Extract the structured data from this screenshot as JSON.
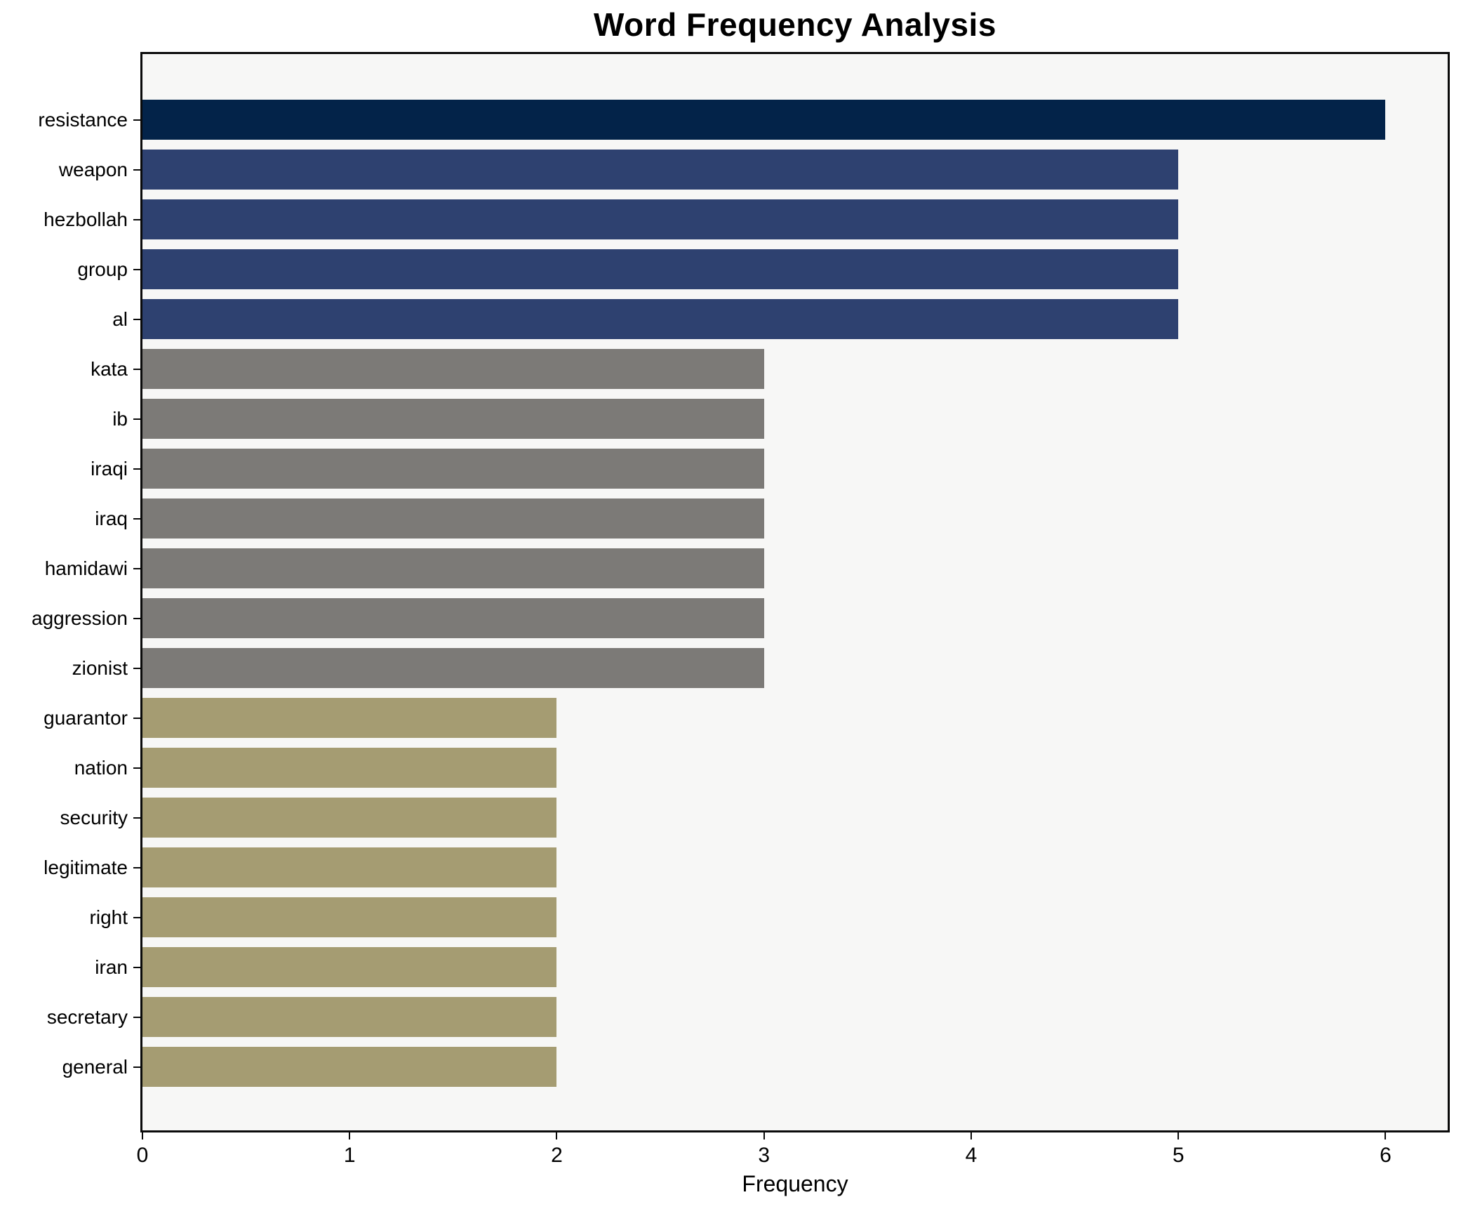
{
  "title": "Word Frequency Analysis",
  "axes": {
    "xlabel": "Frequency",
    "ylabel": ""
  },
  "colors": {
    "figure_bg": "#ffffff",
    "plot_bg": "#f7f7f6",
    "spine": "#0a0a0a",
    "text": "#000000",
    "bar_dark_navy": "#032349",
    "bar_navy": "#2e4170",
    "bar_gray": "#7c7a77",
    "bar_khaki": "#a59c72"
  },
  "chart_data": {
    "type": "bar",
    "orientation": "horizontal",
    "title": "Word Frequency Analysis",
    "xlabel": "Frequency",
    "ylabel": "",
    "categories": [
      "resistance",
      "weapon",
      "hezbollah",
      "group",
      "al",
      "kata",
      "ib",
      "iraqi",
      "iraq",
      "hamidawi",
      "aggression",
      "zionist",
      "guarantor",
      "nation",
      "security",
      "legitimate",
      "right",
      "iran",
      "secretary",
      "general"
    ],
    "values": [
      6,
      5,
      5,
      5,
      5,
      3,
      3,
      3,
      3,
      3,
      3,
      3,
      2,
      2,
      2,
      2,
      2,
      2,
      2,
      2
    ],
    "bar_colors": [
      "#032349",
      "#2e4170",
      "#2e4170",
      "#2e4170",
      "#2e4170",
      "#7c7a77",
      "#7c7a77",
      "#7c7a77",
      "#7c7a77",
      "#7c7a77",
      "#7c7a77",
      "#7c7a77",
      "#a59c72",
      "#a59c72",
      "#a59c72",
      "#a59c72",
      "#a59c72",
      "#a59c72",
      "#a59c72",
      "#a59c72"
    ],
    "xlim": [
      0,
      6.3
    ],
    "x_ticks": [
      0,
      1,
      2,
      3,
      4,
      5,
      6
    ],
    "grid": false,
    "legend_position": "none"
  }
}
